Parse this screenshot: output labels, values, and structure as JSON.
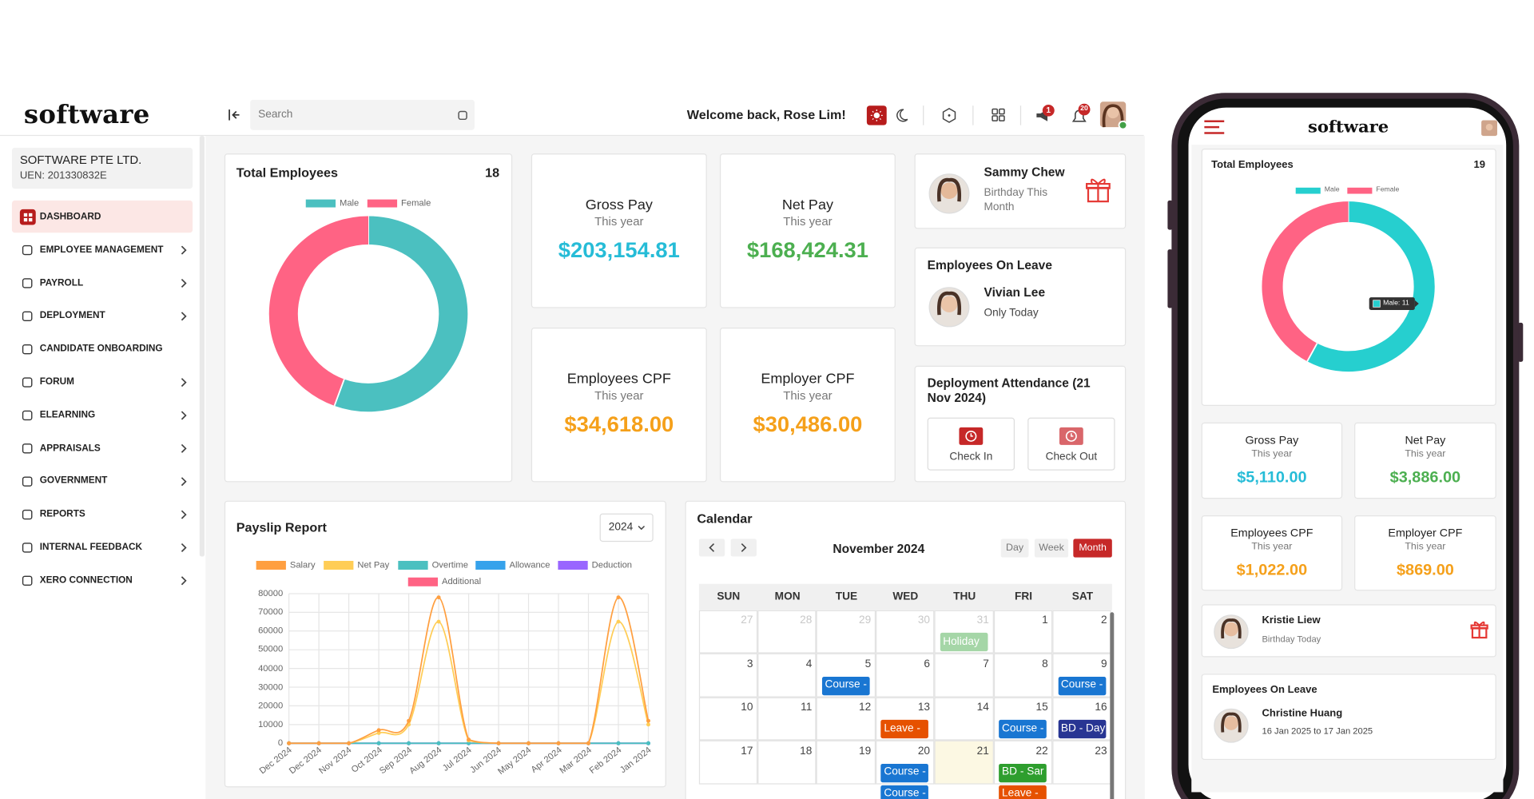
{
  "header": {
    "brand": "software",
    "search": "Search",
    "welcome": "Welcome back, Rose Lim!",
    "alerts": "1",
    "notifications": "20"
  },
  "sidebar": {
    "company": "SOFTWARE PTE LTD.",
    "uen": "UEN: 201330832E",
    "menu": [
      {
        "label": "DASHBOARD",
        "active": true,
        "submenu": false
      },
      {
        "label": "EMPLOYEE MANAGEMENT",
        "submenu": true
      },
      {
        "label": "PAYROLL",
        "submenu": true
      },
      {
        "label": "DEPLOYMENT",
        "submenu": true
      },
      {
        "label": "CANDIDATE ONBOARDING",
        "submenu": false
      },
      {
        "label": "FORUM",
        "submenu": true
      },
      {
        "label": "ELEARNING",
        "submenu": true
      },
      {
        "label": "APPRAISALS",
        "submenu": true
      },
      {
        "label": "GOVERNMENT",
        "submenu": true
      },
      {
        "label": "REPORTS",
        "submenu": true
      },
      {
        "label": "INTERNAL FEEDBACK",
        "submenu": true
      },
      {
        "label": "XERO CONNECTION",
        "submenu": true
      }
    ]
  },
  "dashboard": {
    "total_employees": {
      "title": "Total Employees",
      "count": 18,
      "chart": {
        "type": "pie",
        "categories": [
          "Male",
          "Female"
        ],
        "values": [
          10,
          8
        ],
        "colors": [
          "#4bc0c0",
          "#ff6384"
        ]
      }
    },
    "stats": [
      {
        "title": "Gross Pay",
        "subtitle": "This year",
        "value": "$203,154.81",
        "color": "#26bcd7"
      },
      {
        "title": "Net Pay",
        "subtitle": "This year",
        "value": "$168,424.31",
        "color": "#4caf50"
      },
      {
        "title": "Employees CPF",
        "subtitle": "This year",
        "value": "$34,618.00",
        "color": "#f5a01a"
      },
      {
        "title": "Employer CPF",
        "subtitle": "This year",
        "value": "$30,486.00",
        "color": "#f5a01a"
      }
    ],
    "birthday": {
      "name": "Sammy Chew",
      "note": "Birthday This Month"
    },
    "leave": {
      "title": "Employees On Leave",
      "name": "Vivian Lee",
      "note": "Only Today"
    },
    "attendance": {
      "title": "Deployment Attendance (21 Nov 2024)",
      "check_in": "Check In",
      "check_out": "Check Out"
    },
    "payslip": {
      "title": "Payslip Report",
      "year": "2024",
      "chart": {
        "type": "line",
        "categories": [
          "Dec 2024",
          "Dec 2024",
          "Nov 2024",
          "Oct 2024",
          "Sep 2024",
          "Aug 2024",
          "Jul 2024",
          "Jun 2024",
          "May 2024",
          "Apr 2024",
          "Mar 2024",
          "Feb 2024",
          "Jan 2024"
        ],
        "series": [
          {
            "name": "Salary",
            "color": "#ff9f40",
            "values": [
              0,
              0,
              0,
              7000,
              12000,
              78000,
              2000,
              0,
              0,
              0,
              0,
              78000,
              12000
            ]
          },
          {
            "name": "Net Pay",
            "color": "#ffcd56",
            "values": [
              0,
              0,
              0,
              5500,
              10000,
              65000,
              1500,
              0,
              0,
              0,
              0,
              65000,
              10000
            ]
          },
          {
            "name": "Overtime",
            "color": "#4bc0c0",
            "values": [
              0,
              0,
              0,
              0,
              0,
              0,
              0,
              0,
              0,
              0,
              0,
              0,
              0
            ]
          },
          {
            "name": "Allowance",
            "color": "#36a2eb",
            "values": [
              0,
              0,
              0,
              0,
              0,
              0,
              0,
              0,
              0,
              0,
              0,
              0,
              0
            ]
          },
          {
            "name": "Deduction",
            "color": "#9966ff",
            "values": [
              0,
              0,
              0,
              0,
              0,
              0,
              0,
              0,
              0,
              0,
              0,
              0,
              0
            ]
          },
          {
            "name": "Additional",
            "color": "#ff6384",
            "values": [
              0,
              0,
              0,
              0,
              0,
              0,
              0,
              0,
              0,
              0,
              0,
              0,
              0
            ]
          }
        ],
        "ylim": [
          0,
          80000
        ],
        "yticks": [
          0,
          10000,
          20000,
          30000,
          40000,
          50000,
          60000,
          70000,
          80000
        ],
        "grid": true
      }
    },
    "calendar": {
      "title": "Calendar",
      "month": "November 2024",
      "views": [
        {
          "label": "Day"
        },
        {
          "label": "Week"
        },
        {
          "label": "Month",
          "active": true
        }
      ],
      "weekdays": [
        "SUN",
        "MON",
        "TUE",
        "WED",
        "THU",
        "FRI",
        "SAT"
      ],
      "weeks": [
        [
          {
            "day": 27,
            "other": true
          },
          {
            "day": 28,
            "other": true
          },
          {
            "day": 29,
            "other": true
          },
          {
            "day": 30,
            "other": true
          },
          {
            "day": 31,
            "other": true,
            "events": [
              {
                "label": "Holiday",
                "color": "#a5d6a7"
              }
            ]
          },
          {
            "day": 1
          },
          {
            "day": 2
          }
        ],
        [
          {
            "day": 3
          },
          {
            "day": 4
          },
          {
            "day": 5,
            "events": [
              {
                "label": "Course -",
                "color": "#1976d2"
              }
            ]
          },
          {
            "day": 6
          },
          {
            "day": 7
          },
          {
            "day": 8
          },
          {
            "day": 9,
            "events": [
              {
                "label": "Course -",
                "color": "#1976d2"
              }
            ]
          }
        ],
        [
          {
            "day": 10
          },
          {
            "day": 11
          },
          {
            "day": 12
          },
          {
            "day": 13,
            "events": [
              {
                "label": "Leave -",
                "color": "#e65100"
              }
            ]
          },
          {
            "day": 14
          },
          {
            "day": 15,
            "events": [
              {
                "label": "Course -",
                "color": "#1976d2"
              }
            ]
          },
          {
            "day": 16,
            "events": [
              {
                "label": "BD - Day",
                "color": "#283593"
              }
            ]
          }
        ],
        [
          {
            "day": 17
          },
          {
            "day": 18
          },
          {
            "day": 19
          },
          {
            "day": 20,
            "events": [
              {
                "label": "Course -",
                "color": "#1976d2"
              },
              {
                "label": "Course -",
                "color": "#1976d2"
              }
            ]
          },
          {
            "day": 21,
            "today": true
          },
          {
            "day": 22,
            "events": [
              {
                "label": "BD - Sar",
                "color": "#2e9e2e"
              },
              {
                "label": "Leave -",
                "color": "#e65100"
              }
            ]
          },
          {
            "day": 23
          }
        ]
      ]
    }
  },
  "mobile": {
    "brand": "software",
    "total_employees": {
      "title": "Total Employees",
      "count": 19,
      "tooltip": "Male: 11",
      "chart": {
        "type": "pie",
        "categories": [
          "Male",
          "Female"
        ],
        "values": [
          11,
          8
        ],
        "colors": [
          "#26cfcf",
          "#ff6384"
        ]
      }
    },
    "stats": [
      {
        "title": "Gross Pay",
        "subtitle": "This year",
        "value": "$5,110.00",
        "color": "#26bcd7"
      },
      {
        "title": "Net Pay",
        "subtitle": "This year",
        "value": "$3,886.00",
        "color": "#4caf50"
      },
      {
        "title": "Employees CPF",
        "subtitle": "This year",
        "value": "$1,022.00",
        "color": "#f5a01a"
      },
      {
        "title": "Employer CPF",
        "subtitle": "This year",
        "value": "$869.00",
        "color": "#f5a01a"
      }
    ],
    "birthday": {
      "name": "Kristie Liew",
      "note": "Birthday Today"
    },
    "leave": {
      "title": "Employees On Leave",
      "name": "Christine Huang",
      "note": "16 Jan 2025 to 17 Jan 2025"
    }
  }
}
